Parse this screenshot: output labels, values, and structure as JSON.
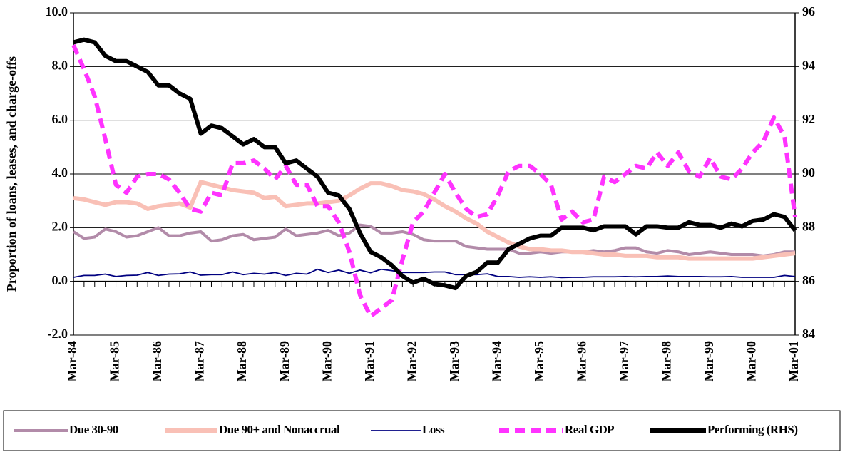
{
  "chart_data": {
    "type": "line",
    "y_label": "Proportion of  loans, leases, and charge-offs",
    "categories": [
      "Mar-84",
      null,
      null,
      null,
      "Mar-85",
      null,
      null,
      null,
      "Mar-86",
      null,
      null,
      null,
      "Mar-87",
      null,
      null,
      null,
      "Mar-88",
      null,
      null,
      null,
      "Mar-89",
      null,
      null,
      null,
      "Mar-90",
      null,
      null,
      null,
      "Mar-91",
      null,
      null,
      null,
      "Mar-92",
      null,
      null,
      null,
      "Mar-93",
      null,
      null,
      null,
      "Mar-94",
      null,
      null,
      null,
      "Mar-95",
      null,
      null,
      null,
      "Mar-96",
      null,
      null,
      null,
      "Mar-97",
      null,
      null,
      null,
      "Mar-98",
      null,
      null,
      null,
      "Mar-99",
      null,
      null,
      null,
      "Mar-00",
      null,
      null,
      null,
      "Mar-01"
    ],
    "ylim": [
      -2,
      10
    ],
    "yticks": [
      {
        "value": -2,
        "label": "-2.0"
      },
      {
        "value": 0,
        "label": "0.0"
      },
      {
        "value": 2,
        "label": "2.0"
      },
      {
        "value": 4,
        "label": "4.0"
      },
      {
        "value": 6,
        "label": "6.0"
      },
      {
        "value": 8,
        "label": "8.0"
      },
      {
        "value": 10,
        "label": "10.0"
      }
    ],
    "y2lim": [
      84,
      96
    ],
    "y2ticks": [
      84,
      86,
      88,
      90,
      92,
      94,
      96
    ],
    "grid": true,
    "legend": "bottom",
    "series": [
      {
        "name": "Due 30-90",
        "color": "#b28ba9",
        "width": 4,
        "dashed": false,
        "values": [
          1.85,
          1.6,
          1.65,
          1.95,
          1.85,
          1.65,
          1.7,
          1.85,
          2.0,
          1.7,
          1.7,
          1.8,
          1.85,
          1.5,
          1.55,
          1.7,
          1.75,
          1.55,
          1.6,
          1.65,
          1.95,
          1.7,
          1.75,
          1.8,
          1.9,
          1.7,
          1.8,
          2.1,
          2.05,
          1.8,
          1.8,
          1.85,
          1.75,
          1.55,
          1.5,
          1.5,
          1.5,
          1.3,
          1.25,
          1.2,
          1.2,
          1.2,
          1.05,
          1.05,
          1.1,
          1.05,
          1.1,
          1.1,
          1.1,
          1.15,
          1.1,
          1.15,
          1.25,
          1.25,
          1.1,
          1.05,
          1.15,
          1.1,
          1.0,
          1.05,
          1.1,
          1.05,
          1.0,
          1.0,
          1.0,
          0.95,
          1.0,
          1.1,
          1.1
        ]
      },
      {
        "name": "Due 90+ and Nonaccrual",
        "color": "#f9c0b6",
        "width": 6,
        "dashed": false,
        "values": [
          3.1,
          3.05,
          2.95,
          2.85,
          2.95,
          2.95,
          2.9,
          2.7,
          2.8,
          2.85,
          2.9,
          2.75,
          3.7,
          3.6,
          3.5,
          3.4,
          3.35,
          3.3,
          3.1,
          3.15,
          2.8,
          2.85,
          2.9,
          2.9,
          2.95,
          3.0,
          3.2,
          3.45,
          3.65,
          3.65,
          3.55,
          3.4,
          3.35,
          3.25,
          3.05,
          2.8,
          2.6,
          2.35,
          2.15,
          1.85,
          1.65,
          1.45,
          1.3,
          1.2,
          1.2,
          1.15,
          1.15,
          1.1,
          1.1,
          1.05,
          1.0,
          1.0,
          0.95,
          0.95,
          0.95,
          0.9,
          0.9,
          0.9,
          0.85,
          0.85,
          0.85,
          0.85,
          0.85,
          0.85,
          0.85,
          0.9,
          0.95,
          1.0,
          1.05
        ]
      },
      {
        "name": "Loss",
        "color": "#000080",
        "width": 1.8,
        "dashed": false,
        "values": [
          0.15,
          0.22,
          0.22,
          0.27,
          0.18,
          0.22,
          0.23,
          0.33,
          0.22,
          0.27,
          0.28,
          0.35,
          0.23,
          0.25,
          0.25,
          0.35,
          0.25,
          0.3,
          0.27,
          0.33,
          0.22,
          0.3,
          0.27,
          0.45,
          0.33,
          0.42,
          0.3,
          0.42,
          0.32,
          0.45,
          0.4,
          0.33,
          0.33,
          0.33,
          0.35,
          0.35,
          0.25,
          0.25,
          0.25,
          0.28,
          0.18,
          0.18,
          0.15,
          0.17,
          0.15,
          0.17,
          0.14,
          0.15,
          0.15,
          0.17,
          0.17,
          0.17,
          0.18,
          0.17,
          0.18,
          0.18,
          0.2,
          0.18,
          0.18,
          0.18,
          0.17,
          0.17,
          0.18,
          0.15,
          0.15,
          0.15,
          0.15,
          0.22,
          0.18
        ]
      },
      {
        "name": "Real GDP",
        "color": "#ff33ff",
        "width": 6,
        "dashed": true,
        "values": [
          8.8,
          7.9,
          6.9,
          5.3,
          3.6,
          3.3,
          3.9,
          4.0,
          4.0,
          3.8,
          3.3,
          2.7,
          2.6,
          3.3,
          3.2,
          4.4,
          4.4,
          4.5,
          4.2,
          3.8,
          4.3,
          3.6,
          3.6,
          2.8,
          2.8,
          2.2,
          1.1,
          -0.5,
          -1.3,
          -1.0,
          -0.7,
          0.8,
          2.2,
          2.6,
          3.3,
          4.0,
          3.3,
          2.7,
          2.4,
          2.5,
          3.2,
          4.1,
          4.3,
          4.3,
          4.0,
          3.6,
          2.3,
          2.6,
          2.2,
          2.3,
          3.9,
          3.7,
          4.0,
          4.3,
          4.2,
          4.8,
          4.3,
          4.8,
          4.1,
          3.9,
          4.6,
          3.9,
          3.8,
          4.2,
          4.8,
          5.2,
          6.1,
          5.4,
          2.4
        ]
      },
      {
        "name": "Performing (RHS)",
        "color": "#000000",
        "width": 6,
        "dashed": false,
        "axis": "y2",
        "values": [
          94.9,
          95.0,
          94.9,
          94.4,
          94.2,
          94.2,
          94.0,
          93.8,
          93.3,
          93.3,
          93.0,
          92.8,
          91.5,
          91.8,
          91.7,
          91.4,
          91.1,
          91.3,
          91.0,
          91.0,
          90.4,
          90.5,
          90.2,
          89.9,
          89.3,
          89.2,
          88.7,
          87.8,
          87.1,
          86.9,
          86.6,
          86.2,
          85.95,
          86.1,
          85.9,
          85.85,
          85.75,
          86.2,
          86.35,
          86.7,
          86.7,
          87.2,
          87.4,
          87.6,
          87.7,
          87.7,
          88.0,
          88.0,
          88.0,
          87.9,
          88.05,
          88.05,
          88.05,
          87.75,
          88.05,
          88.05,
          88.0,
          88.0,
          88.2,
          88.1,
          88.1,
          88.0,
          88.15,
          88.05,
          88.25,
          88.3,
          88.5,
          88.4,
          87.9
        ]
      }
    ]
  }
}
